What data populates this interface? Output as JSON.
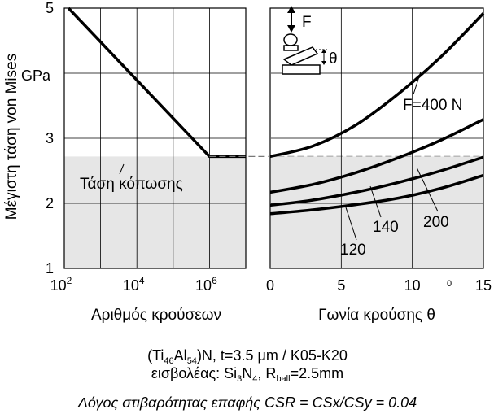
{
  "chart_data": [
    {
      "type": "line",
      "x_scale": "log",
      "xlabel": "Αριθμός κρούσεων",
      "ylabel": "Μέγιστη τάση von Mises",
      "y_unit": "GPa",
      "xlim": [
        100,
        10000000
      ],
      "ylim": [
        1,
        5
      ],
      "xticks": [
        {
          "value": 100,
          "base": "10",
          "exp": "2"
        },
        {
          "value": 10000,
          "base": "10",
          "exp": "4"
        },
        {
          "value": 1000000,
          "base": "10",
          "exp": "6"
        }
      ],
      "yticks": [
        "1",
        "2",
        "3",
        "4",
        "5"
      ],
      "grid": true,
      "shaded_region": {
        "y_from": 1,
        "y_to": 2.72,
        "color": "#e6e6e6"
      },
      "fatigue_limit": {
        "y": 2.72,
        "label": "Τάση κόπωσης"
      },
      "series": [
        {
          "x": [
            130,
            1000000,
            10000000
          ],
          "y": [
            5.0,
            2.72,
            2.72
          ]
        }
      ]
    },
    {
      "type": "line",
      "xlabel": "Γωνία κρούσης θ",
      "x_unit": "0",
      "xlim": [
        0,
        15
      ],
      "ylim": [
        1,
        5
      ],
      "xticks": [
        "0",
        "5",
        "10",
        "15"
      ],
      "grid": true,
      "shaded_region": {
        "y_from": 1,
        "y_to": 2.72,
        "color": "#e6e6e6"
      },
      "series": [
        {
          "name": "F=400 N",
          "x": [
            0,
            3,
            6,
            9,
            12,
            15
          ],
          "y": [
            2.72,
            2.88,
            3.2,
            3.68,
            4.25,
            4.92
          ]
        },
        {
          "name": "200",
          "x": [
            0,
            3,
            6,
            9,
            12,
            15
          ],
          "y": [
            2.17,
            2.29,
            2.47,
            2.7,
            2.97,
            3.29
          ]
        },
        {
          "name": "140",
          "x": [
            0,
            3,
            6,
            9,
            12,
            15
          ],
          "y": [
            1.97,
            2.05,
            2.17,
            2.32,
            2.5,
            2.71
          ]
        },
        {
          "name": "120",
          "x": [
            0,
            3,
            6,
            9,
            12,
            15
          ],
          "y": [
            1.84,
            1.9,
            1.98,
            2.08,
            2.23,
            2.43
          ]
        }
      ],
      "inset": {
        "force_label": "F",
        "angle_label": "θ"
      }
    }
  ],
  "caption": {
    "line1": {
      "a": "(Ti",
      "b": "46",
      "c": "Al",
      "d": "54",
      "e": ")N, t=3.5 μm / K05-K20"
    },
    "line2": {
      "a": "εισβολέας: Si",
      "b": "3",
      "c": "N",
      "d": "4",
      "e": ",  R",
      "f": "ball",
      "g": "=2.5mm"
    },
    "line3": "Λόγος στιβαρότητας επαφής CSR = CSx/CSy = 0.04"
  }
}
